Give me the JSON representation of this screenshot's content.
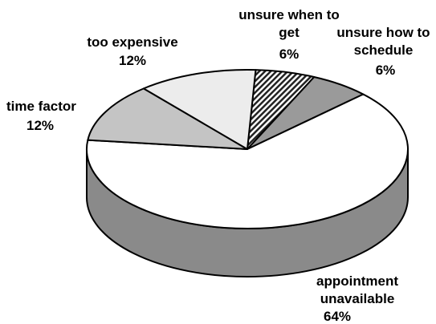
{
  "chart_data": {
    "type": "pie3d",
    "categories": [
      "unsure when to get",
      "unsure how to schedule",
      "appointment unavailable",
      "time factor",
      "too expensive"
    ],
    "values": [
      6,
      6,
      64,
      12,
      12
    ],
    "value_labels": [
      "6%",
      "6%",
      "64%",
      "12%",
      "12%"
    ],
    "colors": [
      "#4a4a4a",
      "#9a9a9a",
      "#ffffff",
      "#c4c4c4",
      "#ececec"
    ],
    "side_colors": [
      "#333333",
      "#777777",
      "#8a8a8a",
      "#a0a0a0",
      "#c0c0c0"
    ]
  }
}
